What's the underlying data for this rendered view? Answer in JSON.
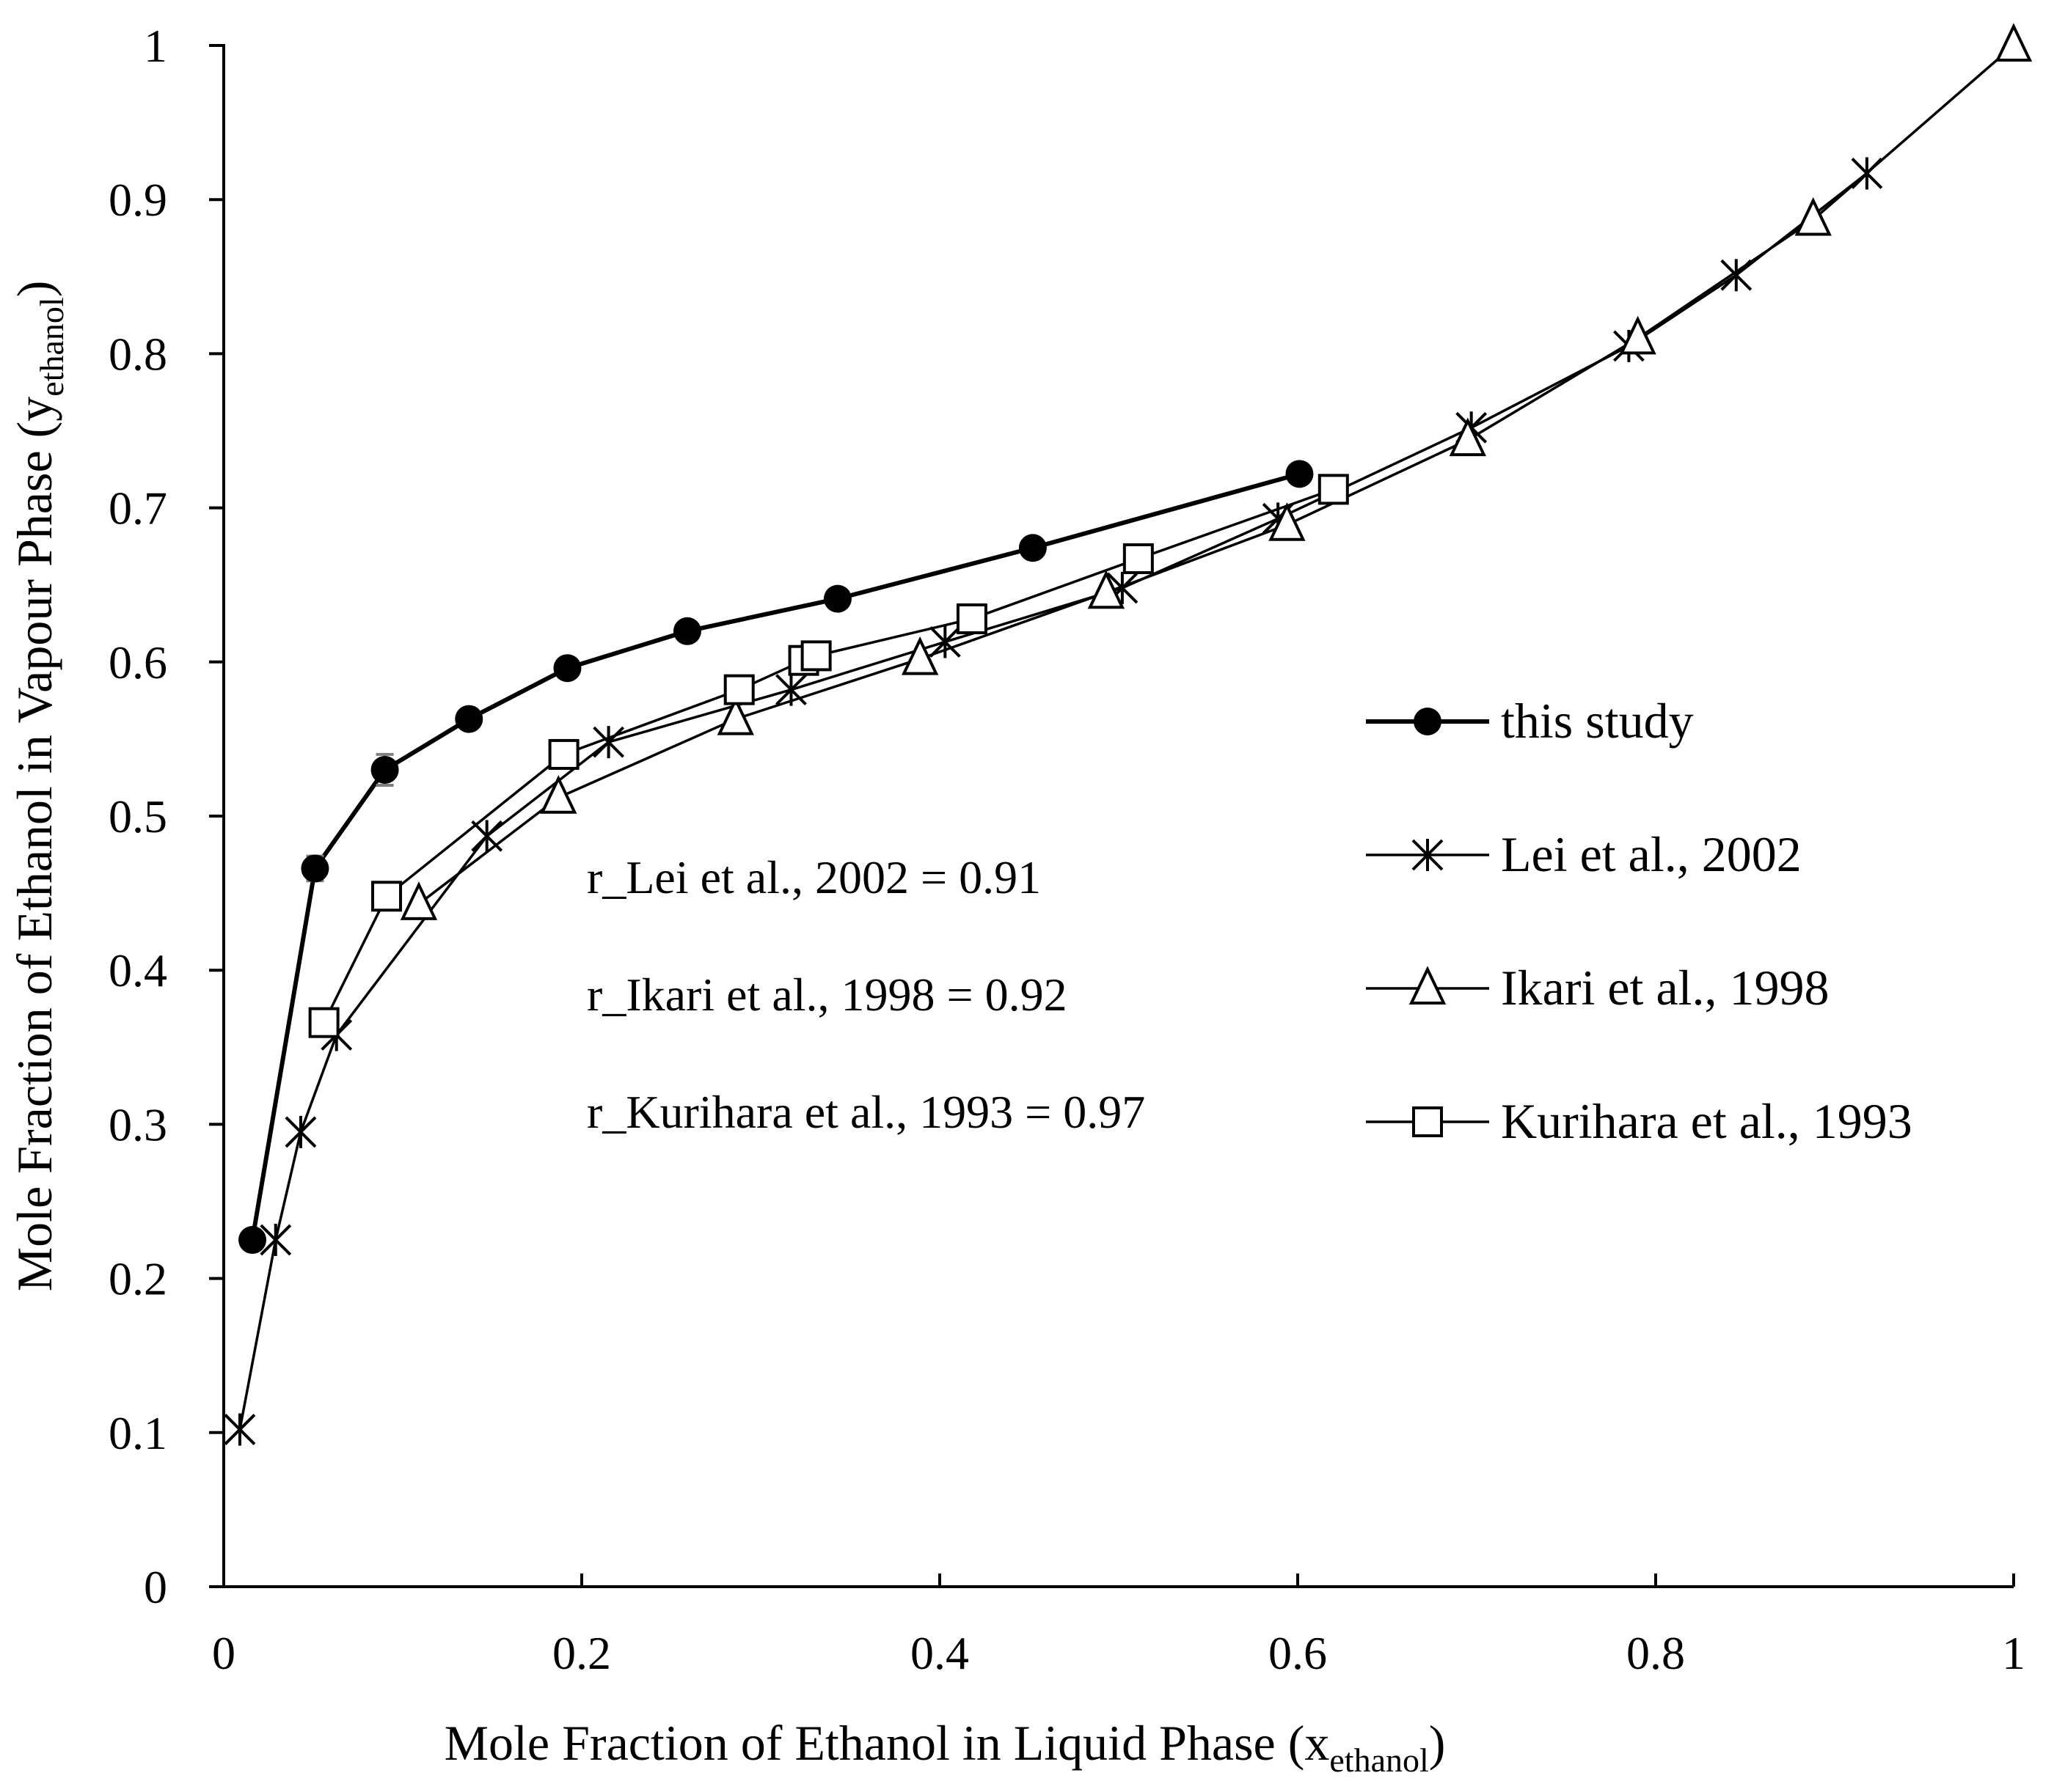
{
  "chart_data": {
    "type": "line",
    "title": "",
    "xlabel": "Mole Fraction of Ethanol in Liquid Phase (x",
    "xlabel_subscript": "ethanol",
    "xlabel_close": ")",
    "ylabel": "Mole Fraction of Ethanol in Vapour Phase (y",
    "ylabel_subscript": "ethanol",
    "ylabel_close": ")",
    "xlim": [
      0,
      1
    ],
    "ylim": [
      0,
      1
    ],
    "x_ticks": [
      "0",
      "0.2",
      "0.4",
      "0.6",
      "0.8",
      "1"
    ],
    "y_ticks": [
      "0",
      "0.1",
      "0.2",
      "0.3",
      "0.4",
      "0.5",
      "0.6",
      "0.7",
      "0.8",
      "0.9",
      "1"
    ],
    "grid": false,
    "legend_position": "right",
    "series": [
      {
        "name": "this study",
        "marker": "filled-circle",
        "points": [
          [
            0.016,
            0.225
          ],
          [
            0.051,
            0.466
          ],
          [
            0.09,
            0.53
          ],
          [
            0.137,
            0.563
          ],
          [
            0.192,
            0.596
          ],
          [
            0.259,
            0.62
          ],
          [
            0.343,
            0.641
          ],
          [
            0.452,
            0.674
          ],
          [
            0.601,
            0.722
          ]
        ],
        "errors": [
          0.004,
          0.008,
          0.01,
          0.005,
          0.005,
          0.004,
          0.004,
          0.004,
          0.004
        ]
      },
      {
        "name": "Lei et al., 2002",
        "marker": "asterisk",
        "points": [
          [
            0.009,
            0.102
          ],
          [
            0.029,
            0.225
          ],
          [
            0.043,
            0.295
          ],
          [
            0.063,
            0.358
          ],
          [
            0.147,
            0.487
          ],
          [
            0.215,
            0.548
          ],
          [
            0.317,
            0.582
          ],
          [
            0.403,
            0.613
          ],
          [
            0.502,
            0.648
          ],
          [
            0.589,
            0.693
          ],
          [
            0.697,
            0.752
          ],
          [
            0.785,
            0.805
          ],
          [
            0.845,
            0.851
          ],
          [
            0.918,
            0.917
          ]
        ]
      },
      {
        "name": "Ikari et al., 1998",
        "marker": "open-triangle",
        "points": [
          [
            0.109,
            0.443
          ],
          [
            0.187,
            0.512
          ],
          [
            0.286,
            0.563
          ],
          [
            0.389,
            0.602
          ],
          [
            0.493,
            0.645
          ],
          [
            0.594,
            0.689
          ],
          [
            0.695,
            0.744
          ],
          [
            0.79,
            0.81
          ],
          [
            0.888,
            0.887
          ],
          [
            1.0,
            1.0
          ]
        ]
      },
      {
        "name": "Kurihara et al., 1993",
        "marker": "open-square",
        "points": [
          [
            0.056,
            0.366
          ],
          [
            0.091,
            0.448
          ],
          [
            0.19,
            0.54
          ],
          [
            0.288,
            0.582
          ],
          [
            0.324,
            0.601
          ],
          [
            0.331,
            0.604
          ],
          [
            0.418,
            0.628
          ],
          [
            0.511,
            0.667
          ],
          [
            0.62,
            0.712
          ]
        ]
      }
    ],
    "annotations": [
      "r_Lei et al., 2002 = 0.91",
      "r_Ikari et al., 1998 = 0.92",
      "r_Kurihara et al., 1993 = 0.97"
    ]
  }
}
